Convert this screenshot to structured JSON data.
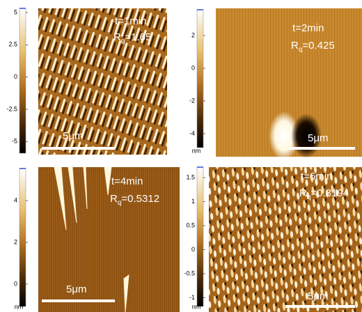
{
  "panels": [
    {
      "time": "t=1min",
      "roughness": {
        "symbol": "R",
        "subscript": "q",
        "value": "=1.65"
      },
      "scale_bar": "5μm",
      "colorbar": {
        "ticks": [
          "5",
          "2.5",
          "0",
          "-2.5",
          "-5"
        ]
      }
    },
    {
      "time": "t=2min",
      "roughness": {
        "symbol": "R",
        "subscript": "q",
        "value": "=0.425"
      },
      "scale_bar": "5μm",
      "colorbar": {
        "ticks": [
          "2",
          "0",
          "-2",
          "-4"
        ],
        "unit": "nm"
      }
    },
    {
      "time": "t=4min",
      "roughness": {
        "symbol": "R",
        "subscript": "q",
        "value": "=0.5312"
      },
      "scale_bar": "5μm",
      "colorbar": {
        "ticks": [
          "4",
          "2",
          "0"
        ],
        "unit": "nm"
      }
    },
    {
      "time": "t=6min",
      "roughness": {
        "symbol": "R",
        "subscript": "q",
        "value": "=0.3194"
      },
      "scale_bar": "5μm",
      "colorbar": {
        "ticks": [
          "1.5",
          "1",
          "0.5",
          "0",
          "-0.5",
          "-1"
        ],
        "unit": "nm"
      }
    }
  ]
}
